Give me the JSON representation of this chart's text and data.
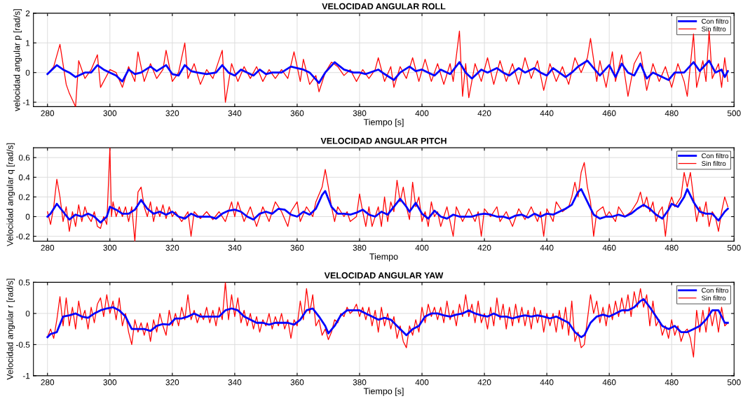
{
  "chart_data": [
    {
      "type": "line",
      "title": "VELOCIDAD ANGULAR ROLL",
      "xlabel": "Tiempo [s]",
      "ylabel": "velocidad angular p [rad/s]",
      "xlim": [
        275.5,
        500
      ],
      "xticks": [
        280,
        300,
        320,
        340,
        360,
        380,
        400,
        420,
        440,
        460,
        480,
        500
      ],
      "ylim": [
        -1.15,
        2
      ],
      "yticks": [
        -1,
        0,
        1,
        2
      ],
      "grid": true,
      "legend": "top right",
      "marker": "none",
      "line_style": "solid",
      "series": [
        {
          "name": "Con filtro",
          "color": "#0000ff",
          "x": [
            280,
            283,
            285,
            287,
            289,
            292,
            294,
            296,
            298,
            300,
            302,
            304,
            306,
            308,
            310,
            313,
            315,
            318,
            320,
            322,
            324,
            326,
            328,
            331,
            334,
            336,
            338,
            340,
            342,
            344,
            346,
            348,
            350,
            352,
            355,
            358,
            360,
            362,
            364,
            367,
            369,
            372,
            375,
            378,
            380,
            382,
            386,
            388,
            391,
            393,
            396,
            398,
            400,
            402,
            404,
            406,
            409,
            412,
            414,
            416,
            419,
            421,
            424,
            426,
            428,
            431,
            433,
            436,
            438,
            440,
            442,
            444,
            446,
            448,
            450,
            453,
            455,
            457,
            460,
            462,
            464,
            466,
            468,
            470,
            472,
            474,
            476,
            479,
            481,
            484,
            487,
            489,
            492,
            494,
            496,
            497,
            498
          ],
          "values": [
            -0.05,
            0.25,
            0.1,
            0.0,
            -0.15,
            0.0,
            0.0,
            0.25,
            0.1,
            0.0,
            -0.1,
            -0.3,
            0.1,
            -0.05,
            0.0,
            0.2,
            0.05,
            0.25,
            -0.05,
            -0.1,
            0.25,
            0.05,
            0.0,
            -0.05,
            0.0,
            0.25,
            0.0,
            -0.1,
            0.1,
            0.0,
            -0.1,
            0.1,
            -0.05,
            0.0,
            0.0,
            0.2,
            0.15,
            0.1,
            0.0,
            -0.35,
            0.0,
            0.35,
            0.1,
            0.0,
            0.0,
            -0.05,
            0.1,
            -0.05,
            -0.25,
            0.0,
            0.2,
            0.05,
            0.1,
            0.0,
            -0.1,
            0.1,
            -0.05,
            0.35,
            0.0,
            -0.2,
            0.1,
            0.0,
            0.15,
            0.0,
            -0.1,
            0.15,
            0.0,
            0.15,
            0.0,
            -0.1,
            0.15,
            0.0,
            -0.15,
            0.0,
            0.2,
            0.4,
            0.15,
            -0.1,
            0.25,
            -0.15,
            0.3,
            0.0,
            -0.1,
            0.3,
            -0.2,
            0.0,
            -0.1,
            -0.25,
            0.0,
            0.0,
            0.35,
            0.05,
            0.4,
            0.0,
            0.1,
            -0.15,
            0.05
          ]
        },
        {
          "name": "Sin filtro",
          "color": "#ff0000",
          "x": [
            280,
            282,
            284,
            286,
            287,
            289,
            290,
            292,
            294,
            296,
            297,
            300,
            302,
            304,
            306,
            308,
            309,
            311,
            313,
            315,
            317,
            318,
            320,
            322,
            324,
            325,
            327,
            329,
            331,
            333,
            336,
            337,
            339,
            341,
            343,
            345,
            347,
            349,
            351,
            353,
            355,
            357,
            359,
            361,
            362,
            364,
            366,
            367,
            369,
            371,
            373,
            375,
            377,
            379,
            381,
            383,
            385,
            386,
            388,
            390,
            391,
            393,
            395,
            397,
            399,
            401,
            403,
            405,
            407,
            409,
            410,
            412,
            413,
            414,
            415,
            417,
            419,
            421,
            423,
            425,
            427,
            429,
            431,
            433,
            435,
            437,
            439,
            441,
            443,
            445,
            447,
            449,
            451,
            453,
            454,
            456,
            457,
            459,
            461,
            462,
            464,
            466,
            468,
            470,
            472,
            474,
            476,
            478,
            480,
            482,
            484,
            485,
            487,
            488,
            490,
            491,
            492,
            493,
            495,
            496,
            497,
            498
          ],
          "values": [
            -0.05,
            0.2,
            0.95,
            -0.4,
            -0.7,
            -1.15,
            0.4,
            -0.2,
            0.1,
            0.6,
            -0.5,
            0.1,
            0.0,
            -0.5,
            0.2,
            -0.3,
            0.7,
            -0.3,
            0.3,
            -0.2,
            0.1,
            0.75,
            -0.3,
            0.0,
            1.0,
            -0.2,
            0.3,
            -0.4,
            0.1,
            -0.2,
            0.75,
            -1.0,
            0.3,
            -0.3,
            0.2,
            -0.2,
            0.2,
            -0.3,
            0.1,
            -0.2,
            0.1,
            -0.2,
            0.7,
            -0.3,
            0.45,
            -0.4,
            -0.1,
            -0.65,
            0.0,
            0.35,
            0.2,
            -0.1,
            0.1,
            -0.3,
            0.1,
            -0.2,
            0.1,
            0.5,
            -0.3,
            0.2,
            -0.5,
            0.2,
            -0.2,
            0.5,
            -0.3,
            0.45,
            -0.3,
            0.3,
            -0.4,
            0.3,
            -0.3,
            1.4,
            -0.8,
            0.3,
            -0.85,
            0.3,
            -0.3,
            0.5,
            -0.4,
            0.4,
            -0.3,
            0.3,
            -0.4,
            0.5,
            -0.2,
            0.4,
            -0.6,
            0.3,
            -0.3,
            0.2,
            -0.4,
            0.5,
            0.0,
            0.5,
            1.15,
            -0.3,
            0.4,
            -0.5,
            0.7,
            -0.3,
            0.6,
            -0.8,
            0.3,
            0.7,
            -0.6,
            0.3,
            -0.3,
            0.2,
            -0.5,
            0.3,
            -0.3,
            -0.8,
            1.3,
            -0.5,
            0.4,
            -0.3,
            1.4,
            -0.2,
            0.3,
            -0.5,
            0.5,
            -0.3
          ]
        }
      ]
    },
    {
      "type": "line",
      "title": "VELOCIDAD ANGULAR PITCH",
      "xlabel": "Tiempo",
      "ylabel": "Velocidad angular q [rad/s]",
      "xlim": [
        275.5,
        500
      ],
      "xticks": [
        280,
        300,
        320,
        340,
        360,
        380,
        400,
        420,
        440,
        460,
        480,
        500
      ],
      "ylim": [
        -0.25,
        0.7
      ],
      "yticks": [
        -0.2,
        0,
        0.2,
        0.4,
        0.6
      ],
      "grid": true,
      "legend": "top right",
      "marker": "none",
      "line_style": "solid",
      "series": [
        {
          "name": "Con filtro",
          "color": "#0000ff",
          "x": [
            280,
            281,
            283,
            285,
            287,
            289,
            291,
            293,
            295,
            297,
            299,
            300,
            302,
            304,
            306,
            308,
            310,
            312,
            314,
            316,
            318,
            320,
            322,
            324,
            326,
            328,
            330,
            332,
            334,
            336,
            338,
            340,
            342,
            344,
            346,
            348,
            350,
            352,
            354,
            356,
            358,
            360,
            362,
            364,
            366,
            368,
            369,
            371,
            373,
            375,
            377,
            379,
            381,
            383,
            385,
            387,
            389,
            391,
            393,
            395,
            396,
            398,
            400,
            402,
            404,
            406,
            408,
            410,
            412,
            414,
            416,
            418,
            420,
            422,
            424,
            426,
            428,
            430,
            432,
            434,
            436,
            438,
            440,
            442,
            444,
            446,
            448,
            450,
            451,
            453,
            455,
            457,
            459,
            461,
            463,
            465,
            467,
            469,
            471,
            473,
            475,
            477,
            479,
            480,
            482,
            484,
            485,
            487,
            489,
            491,
            493,
            495,
            497,
            498
          ],
          "values": [
            0.0,
            0.03,
            0.13,
            0.05,
            -0.03,
            0.02,
            0.0,
            0.03,
            0.0,
            -0.06,
            0.0,
            0.1,
            0.07,
            0.03,
            0.03,
            0.07,
            0.17,
            0.08,
            0.03,
            0.05,
            0.02,
            0.05,
            0.0,
            -0.02,
            0.03,
            0.0,
            0.0,
            0.0,
            -0.02,
            0.03,
            0.06,
            0.07,
            0.05,
            0.0,
            -0.03,
            0.03,
            0.05,
            0.03,
            0.08,
            0.07,
            0.02,
            0.0,
            0.05,
            0.02,
            0.08,
            0.22,
            0.26,
            0.1,
            0.03,
            0.03,
            0.02,
            0.04,
            0.07,
            0.02,
            0.0,
            0.05,
            0.02,
            0.1,
            0.18,
            0.1,
            0.05,
            0.14,
            0.03,
            -0.02,
            0.06,
            0.0,
            -0.02,
            0.02,
            0.0,
            0.0,
            0.0,
            0.02,
            0.03,
            0.02,
            0.0,
            0.0,
            -0.02,
            0.01,
            0.02,
            -0.01,
            0.03,
            0.0,
            0.03,
            0.02,
            0.05,
            0.08,
            0.12,
            0.25,
            0.28,
            0.15,
            0.02,
            -0.02,
            0.0,
            0.0,
            0.02,
            0.0,
            0.03,
            0.08,
            0.12,
            0.08,
            0.02,
            -0.02,
            0.07,
            0.13,
            0.1,
            0.2,
            0.28,
            0.15,
            0.05,
            0.03,
            0.03,
            -0.04,
            0.05,
            0.08
          ]
        },
        {
          "name": "Sin filtro",
          "color": "#ff0000",
          "x": [
            280,
            281,
            282,
            283,
            284,
            285,
            286,
            287,
            288,
            289,
            290,
            291,
            292,
            293,
            294,
            295,
            296,
            297,
            298,
            299,
            300,
            300.5,
            301,
            302,
            303,
            304,
            305,
            306,
            307,
            308,
            309,
            310,
            311,
            312,
            313,
            314,
            315,
            316,
            317,
            318,
            319,
            320,
            321,
            323,
            325,
            326,
            327,
            329,
            331,
            333,
            335,
            337,
            339,
            340,
            341,
            343,
            345,
            347,
            349,
            351,
            353,
            355,
            357,
            358,
            360,
            361,
            363,
            365,
            366,
            368,
            369,
            370,
            371,
            372,
            373,
            375,
            376,
            377,
            379,
            380,
            381,
            382,
            383,
            384,
            386,
            387,
            388,
            389,
            390,
            391,
            392,
            393,
            394,
            395,
            396,
            397,
            398,
            399,
            400,
            401,
            402,
            403,
            404,
            405,
            406,
            408,
            409,
            410,
            411,
            413,
            415,
            417,
            418,
            419,
            420,
            422,
            424,
            425,
            427,
            429,
            431,
            433,
            435,
            437,
            438,
            439,
            440,
            442,
            443,
            445,
            447,
            448,
            449,
            450,
            451,
            452,
            453,
            454,
            455,
            456,
            458,
            459,
            460,
            462,
            463,
            465,
            467,
            469,
            470,
            471,
            472,
            473,
            474,
            475,
            476,
            477,
            478,
            479,
            480,
            481,
            482,
            483,
            484,
            485,
            486,
            487,
            488,
            489,
            490,
            491,
            492,
            493,
            494,
            495,
            496,
            497,
            498
          ],
          "values": [
            0.05,
            -0.08,
            0.1,
            0.38,
            0.2,
            -0.05,
            0.1,
            -0.15,
            0.05,
            -0.1,
            0.12,
            -0.05,
            0.1,
            0.0,
            -0.05,
            0.05,
            -0.1,
            -0.12,
            0.0,
            -0.08,
            0.7,
            0.0,
            0.15,
            0.0,
            0.1,
            0.0,
            0.1,
            -0.05,
            0.1,
            -0.25,
            0.25,
            0.3,
            0.1,
            0.0,
            0.15,
            -0.05,
            0.1,
            0.0,
            0.12,
            -0.02,
            0.1,
            0.0,
            0.05,
            -0.05,
            0.05,
            -0.2,
            0.05,
            -0.02,
            0.05,
            -0.03,
            0.05,
            -0.05,
            0.15,
            0.0,
            0.15,
            -0.05,
            0.1,
            -0.1,
            0.1,
            -0.05,
            0.15,
            0.05,
            -0.1,
            0.05,
            0.15,
            -0.05,
            0.1,
            0.0,
            0.15,
            0.3,
            0.48,
            0.3,
            0.1,
            -0.05,
            0.1,
            0.0,
            0.05,
            -0.05,
            0.0,
            0.23,
            0.05,
            -0.1,
            0.1,
            -0.1,
            0.1,
            -0.1,
            0.2,
            -0.05,
            0.15,
            0.05,
            0.37,
            0.15,
            0.3,
            0.1,
            -0.03,
            0.35,
            0.1,
            0.2,
            -0.05,
            0.05,
            -0.1,
            0.15,
            0.0,
            0.05,
            -0.1,
            0.1,
            -0.05,
            -0.2,
            0.1,
            -0.05,
            0.08,
            -0.05,
            0.05,
            -0.2,
            0.08,
            0.0,
            0.1,
            -0.05,
            0.05,
            -0.1,
            0.08,
            -0.03,
            0.1,
            -0.05,
            0.05,
            -0.2,
            0.08,
            -0.05,
            0.15,
            0.05,
            0.1,
            0.2,
            0.35,
            0.2,
            0.45,
            0.55,
            0.3,
            0.15,
            -0.2,
            0.05,
            0.1,
            0.0,
            0.05,
            -0.05,
            0.1,
            0.0,
            0.05,
            0.15,
            0.25,
            0.1,
            0.2,
            0.05,
            0.15,
            -0.05,
            0.05,
            0.1,
            -0.2,
            0.1,
            0.2,
            0.1,
            0.15,
            0.2,
            0.45,
            0.3,
            0.45,
            0.2,
            -0.05,
            0.1,
            0.0,
            0.15,
            -0.1,
            0.05,
            0.0,
            -0.15,
            0.05,
            0.2,
            0.1
          ]
        }
      ]
    },
    {
      "type": "line",
      "title": "VELOCIDAD ANGULAR YAW",
      "xlabel": "Tiempo [s]",
      "ylabel": "Velocidad angular r [rad/s]",
      "xlim": [
        275.5,
        500
      ],
      "xticks": [
        280,
        300,
        320,
        340,
        360,
        380,
        400,
        420,
        440,
        460,
        480,
        500
      ],
      "ylim": [
        -1,
        0.5
      ],
      "yticks": [
        -1,
        -0.5,
        0,
        0.5
      ],
      "grid": true,
      "legend": "top right",
      "marker": "none",
      "line_style": "solid",
      "series": [
        {
          "name": "Con filtro",
          "color": "#0000ff",
          "x": [
            280,
            281,
            283,
            285,
            287,
            289,
            291,
            293,
            295,
            297,
            299,
            301,
            303,
            305,
            307,
            309,
            311,
            313,
            315,
            317,
            319,
            321,
            323,
            325,
            327,
            329,
            331,
            333,
            335,
            337,
            339,
            341,
            343,
            345,
            347,
            349,
            351,
            353,
            355,
            357,
            359,
            361,
            363,
            365,
            367,
            369,
            370,
            372,
            374,
            376,
            378,
            380,
            382,
            384,
            386,
            388,
            390,
            392,
            394,
            395,
            397,
            399,
            401,
            403,
            405,
            407,
            409,
            411,
            413,
            415,
            417,
            419,
            421,
            423,
            425,
            427,
            429,
            431,
            433,
            435,
            437,
            439,
            441,
            443,
            445,
            447,
            449,
            451,
            452,
            454,
            456,
            458,
            460,
            462,
            464,
            466,
            468,
            470,
            471,
            473,
            475,
            477,
            479,
            481,
            483,
            485,
            487,
            489,
            491,
            493,
            495,
            497,
            498
          ],
          "values": [
            -0.38,
            -0.33,
            -0.3,
            -0.05,
            -0.03,
            0.0,
            -0.05,
            -0.07,
            0.0,
            0.05,
            0.08,
            0.1,
            0.05,
            -0.05,
            -0.25,
            -0.25,
            -0.25,
            -0.28,
            -0.2,
            -0.17,
            -0.18,
            -0.08,
            -0.08,
            -0.05,
            0.0,
            -0.05,
            -0.05,
            -0.05,
            -0.05,
            0.05,
            0.08,
            0.05,
            -0.05,
            -0.1,
            -0.15,
            -0.15,
            -0.18,
            -0.15,
            -0.15,
            -0.15,
            -0.18,
            -0.1,
            0.05,
            0.08,
            -0.05,
            -0.2,
            -0.32,
            -0.2,
            -0.03,
            0.05,
            0.05,
            0.05,
            0.0,
            -0.05,
            -0.1,
            -0.07,
            -0.1,
            -0.2,
            -0.3,
            -0.35,
            -0.25,
            -0.2,
            -0.05,
            0.0,
            0.0,
            -0.03,
            -0.05,
            -0.02,
            0.0,
            0.05,
            0.0,
            -0.03,
            -0.05,
            0.0,
            -0.05,
            -0.05,
            -0.08,
            -0.05,
            -0.03,
            -0.05,
            -0.03,
            -0.05,
            -0.08,
            -0.05,
            -0.1,
            -0.15,
            -0.3,
            -0.38,
            -0.35,
            -0.15,
            -0.05,
            -0.02,
            -0.05,
            0.0,
            0.05,
            0.05,
            0.1,
            0.2,
            0.23,
            0.1,
            -0.05,
            -0.2,
            -0.25,
            -0.2,
            -0.3,
            -0.3,
            -0.25,
            -0.2,
            -0.1,
            0.05,
            0.05,
            -0.15,
            -0.15
          ]
        },
        {
          "name": "Sin filtro",
          "color": "#ff0000",
          "x": [
            280,
            281,
            282,
            283,
            284,
            285,
            286,
            287,
            288,
            289,
            290,
            291,
            292,
            293,
            294,
            295,
            296,
            297,
            298,
            299,
            300,
            301,
            302,
            303,
            304,
            305,
            306,
            307,
            308,
            309,
            310,
            311,
            312,
            313,
            314,
            315,
            316,
            317,
            318,
            319,
            320,
            321,
            322,
            323,
            324,
            325,
            326,
            327,
            328,
            329,
            330,
            331,
            332,
            333,
            334,
            335,
            336,
            337,
            338,
            339,
            340,
            341,
            342,
            343,
            344,
            345,
            346,
            347,
            348,
            349,
            350,
            351,
            352,
            353,
            354,
            355,
            356,
            357,
            358,
            359,
            360,
            361,
            362,
            363,
            364,
            365,
            366,
            367,
            368,
            369,
            370,
            371,
            372,
            373,
            374,
            375,
            376,
            377,
            378,
            379,
            380,
            381,
            382,
            383,
            384,
            385,
            386,
            387,
            388,
            389,
            390,
            391,
            392,
            393,
            394,
            395,
            396,
            397,
            398,
            399,
            400,
            401,
            402,
            403,
            404,
            405,
            406,
            407,
            408,
            409,
            410,
            411,
            412,
            413,
            414,
            415,
            416,
            417,
            418,
            419,
            420,
            421,
            422,
            423,
            424,
            425,
            426,
            427,
            428,
            429,
            430,
            431,
            432,
            433,
            434,
            435,
            436,
            437,
            438,
            439,
            440,
            441,
            442,
            443,
            444,
            445,
            446,
            447,
            448,
            449,
            450,
            451,
            452,
            453,
            454,
            455,
            456,
            457,
            458,
            459,
            460,
            461,
            462,
            463,
            464,
            465,
            466,
            467,
            468,
            469,
            470,
            471,
            472,
            473,
            474,
            475,
            476,
            477,
            478,
            479,
            480,
            481,
            482,
            483,
            484,
            485,
            486,
            487,
            488,
            489,
            490,
            491,
            492,
            493,
            494,
            495,
            496,
            497,
            498
          ],
          "values": [
            -0.38,
            -0.25,
            -0.4,
            -0.1,
            0.27,
            -0.2,
            0.25,
            -0.2,
            0.1,
            -0.25,
            0.2,
            -0.1,
            0.05,
            -0.25,
            0.1,
            -0.15,
            0.15,
            0.25,
            -0.05,
            0.3,
            0.0,
            0.2,
            -0.1,
            0.25,
            -0.2,
            0.0,
            -0.3,
            -0.5,
            -0.1,
            -0.3,
            -0.15,
            -0.35,
            -0.15,
            -0.45,
            -0.1,
            -0.3,
            0.0,
            -0.2,
            -0.35,
            0.05,
            -0.2,
            0.0,
            -0.2,
            0.1,
            -0.1,
            0.3,
            -0.1,
            0.05,
            -0.15,
            0.0,
            -0.1,
            0.1,
            -0.15,
            0.05,
            -0.2,
            0.1,
            -0.1,
            0.5,
            -0.1,
            0.3,
            -0.05,
            0.25,
            -0.15,
            0.05,
            -0.2,
            0.0,
            -0.25,
            -0.05,
            -0.3,
            -0.1,
            -0.2,
            0.0,
            -0.25,
            -0.05,
            -0.2,
            0.0,
            -0.25,
            -0.1,
            -0.4,
            -0.1,
            -0.2,
            0.2,
            -0.1,
            0.4,
            0.0,
            0.3,
            -0.2,
            -0.1,
            -0.35,
            -0.25,
            -0.42,
            -0.3,
            -0.1,
            -0.15,
            0.0,
            -0.05,
            0.1,
            0.0,
            0.05,
            0.15,
            -0.05,
            0.1,
            -0.1,
            0.1,
            -0.2,
            0.05,
            -0.3,
            0.1,
            -0.2,
            0.0,
            -0.25,
            -0.05,
            -0.4,
            -0.2,
            -0.45,
            -0.55,
            -0.2,
            -0.35,
            -0.1,
            -0.3,
            0.1,
            -0.15,
            0.15,
            -0.05,
            0.1,
            -0.1,
            0.1,
            -0.15,
            0.2,
            -0.1,
            0.05,
            -0.2,
            0.15,
            -0.05,
            0.3,
            -0.05,
            0.15,
            -0.15,
            0.2,
            -0.15,
            0.0,
            -0.25,
            0.1,
            -0.2,
            0.25,
            -0.1,
            0.15,
            -0.25,
            0.1,
            -0.2,
            0.15,
            -0.15,
            0.1,
            -0.2,
            0.05,
            -0.25,
            0.1,
            -0.15,
            0.05,
            -0.3,
            0.0,
            -0.2,
            0.0,
            -0.3,
            0.05,
            -0.25,
            0.1,
            -0.35,
            0.2,
            -0.45,
            -0.3,
            -0.55,
            -0.5,
            -0.1,
            0.3,
            0.0,
            0.2,
            -0.15,
            0.1,
            -0.2,
            0.15,
            -0.1,
            0.2,
            -0.05,
            0.25,
            0.0,
            0.3,
            -0.05,
            0.35,
            0.1,
            0.4,
            0.1,
            0.3,
            -0.2,
            0.2,
            -0.2,
            -0.1,
            -0.35,
            -0.2,
            -0.4,
            -0.1,
            -0.35,
            -0.2,
            -0.45,
            -0.3,
            -0.25,
            -0.4,
            -0.7,
            0.05,
            -0.3,
            0.05,
            -0.3,
            0.1,
            -0.2,
            0.05,
            -0.3,
            0.1,
            -0.2,
            -0.15
          ]
        }
      ]
    }
  ]
}
